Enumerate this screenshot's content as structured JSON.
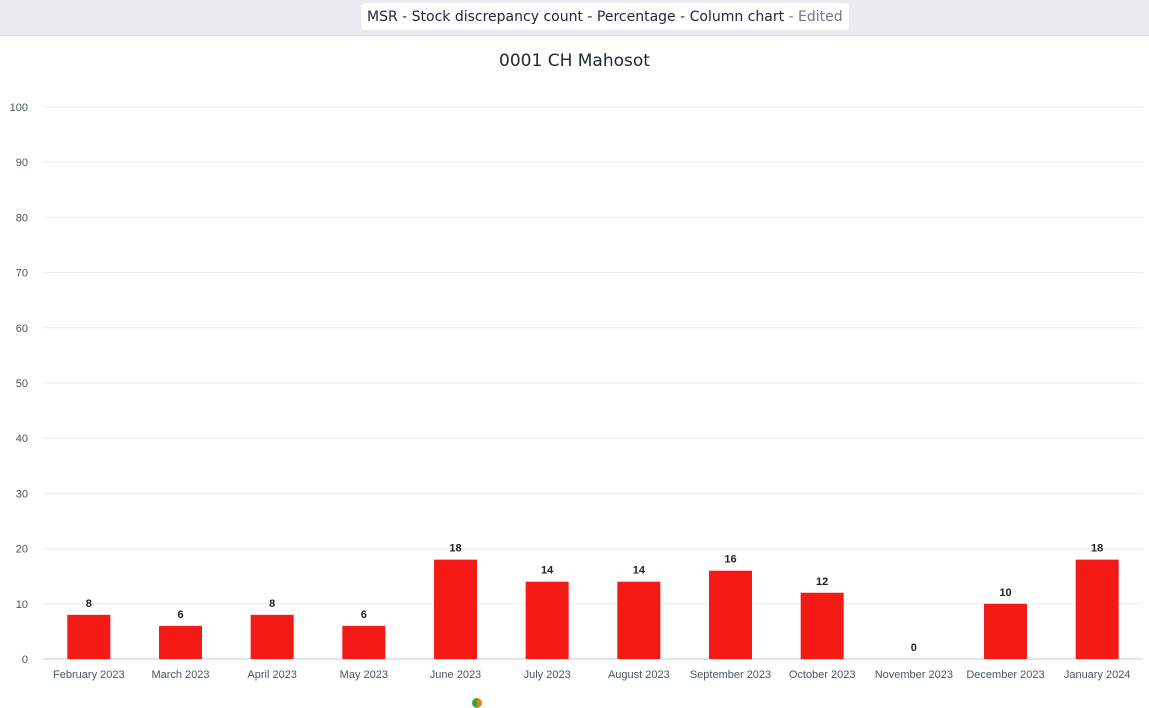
{
  "header": {
    "title": "MSR - Stock discrepancy count - Percentage - Column chart",
    "edited_label": "- Edited"
  },
  "chart_data": {
    "type": "bar",
    "title": "0001 CH Mahosot",
    "categories": [
      "February 2023",
      "March 2023",
      "April 2023",
      "May 2023",
      "June 2023",
      "July 2023",
      "August 2023",
      "September 2023",
      "October 2023",
      "November 2023",
      "December 2023",
      "January 2024"
    ],
    "values": [
      8,
      6,
      8,
      6,
      18,
      14,
      14,
      16,
      12,
      0,
      10,
      18
    ],
    "ylim": [
      0,
      100
    ],
    "yticks": [
      0,
      10,
      20,
      30,
      40,
      50,
      60,
      70,
      80,
      90,
      100
    ],
    "grid": true,
    "data_labels": true,
    "bar_color": "#f41a16"
  }
}
